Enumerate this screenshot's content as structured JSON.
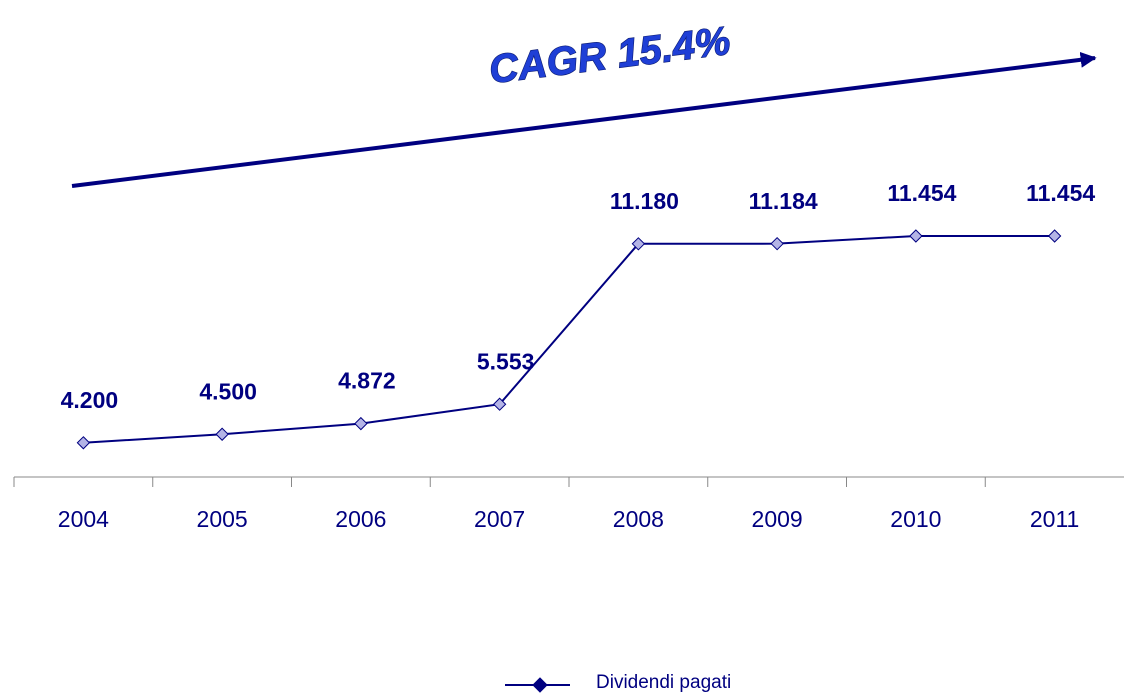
{
  "chart_data": {
    "type": "line",
    "annotation": "CAGR 15.4%",
    "categories": [
      "2004",
      "2005",
      "2006",
      "2007",
      "2008",
      "2009",
      "2010",
      "2011"
    ],
    "series": [
      {
        "name": "Dividendi pagati",
        "color": "#000080",
        "marker_fill": "#b4b4e6",
        "values": [
          4200,
          4500,
          4872,
          5553,
          11180,
          11184,
          11454,
          11454
        ],
        "value_labels": [
          "4.200",
          "4.500",
          "4.872",
          "5.553",
          "11.180",
          "11.184",
          "11.454",
          "11.454"
        ]
      }
    ],
    "ylim": [
      3000,
      14000
    ],
    "legend": "bottom"
  }
}
